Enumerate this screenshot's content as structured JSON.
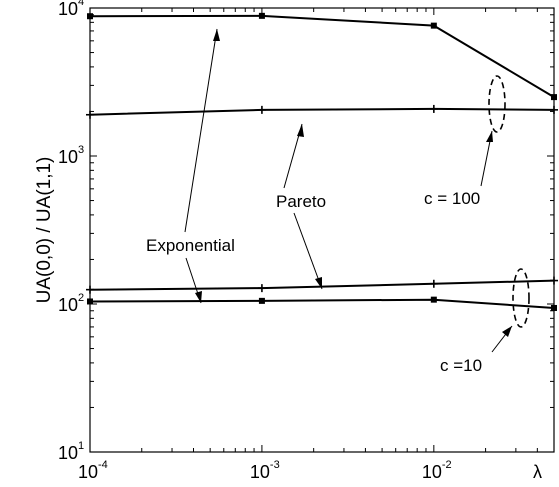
{
  "chart_data": {
    "type": "line",
    "xscale": "log",
    "yscale": "log",
    "xlim": [
      0.0001,
      0.05
    ],
    "ylim": [
      10,
      10000
    ],
    "x_ticks": [
      {
        "value": 0.0001,
        "base": "10",
        "exp": "-4"
      },
      {
        "value": 0.001,
        "base": "10",
        "exp": "-3"
      },
      {
        "value": 0.01,
        "base": "10",
        "exp": "-2"
      }
    ],
    "x_end_label": "λ",
    "y_ticks": [
      {
        "value": 10,
        "base": "10",
        "exp": "1"
      },
      {
        "value": 100,
        "base": "10",
        "exp": "2"
      },
      {
        "value": 1000,
        "base": "10",
        "exp": "3"
      },
      {
        "value": 10000,
        "base": "10",
        "exp": "4"
      }
    ],
    "ylabel": "UA(0,0) / UA(1,1)",
    "xlabel": "",
    "grid": false,
    "series": [
      {
        "group": "c = 100",
        "family": "Exponential",
        "marker": "square",
        "x": [
          0.0001,
          0.001,
          0.01,
          0.05
        ],
        "y": [
          8800,
          8850,
          7600,
          2500
        ]
      },
      {
        "group": "c = 100",
        "family": "Pareto",
        "marker": "plus",
        "x": [
          0.0001,
          0.001,
          0.01,
          0.05
        ],
        "y": [
          1900,
          2050,
          2080,
          2050
        ]
      },
      {
        "group": "c = 10",
        "family": "Pareto",
        "marker": "plus",
        "x": [
          0.0001,
          0.001,
          0.01,
          0.05
        ],
        "y": [
          125,
          128,
          137,
          144
        ]
      },
      {
        "group": "c = 10",
        "family": "Exponential",
        "marker": "square",
        "x": [
          0.0001,
          0.001,
          0.01,
          0.05
        ],
        "y": [
          104,
          105,
          107,
          94
        ]
      }
    ],
    "annotations": {
      "exponential": "Exponential",
      "pareto": "Pareto",
      "c100": "c = 100",
      "c10": "c =10"
    }
  }
}
